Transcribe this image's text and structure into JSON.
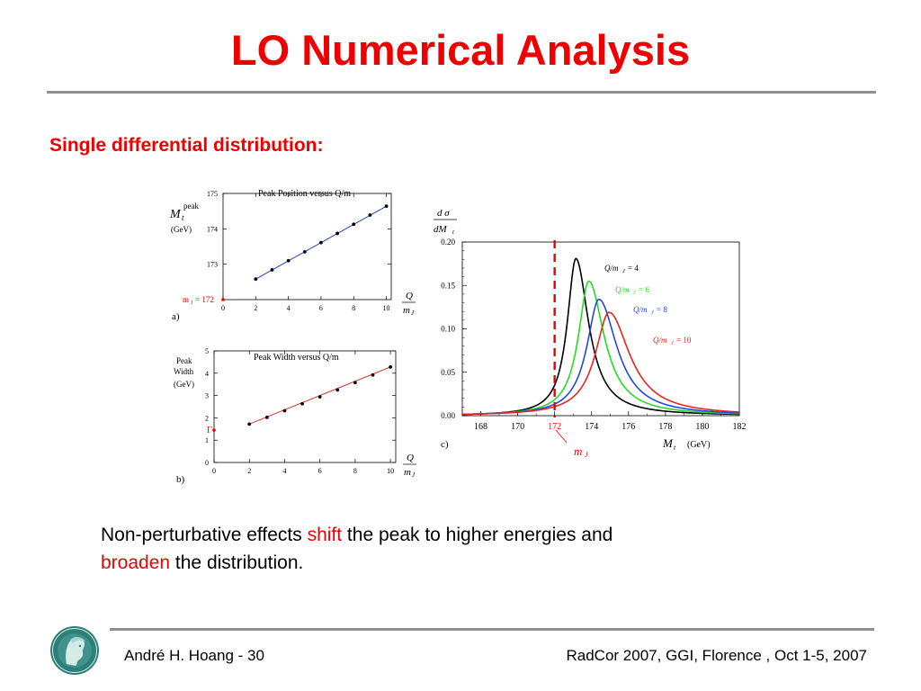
{
  "slide": {
    "title": "LO Numerical Analysis",
    "subtitle": "Single differential distribution:",
    "paragraph": {
      "part1": "Non-perturbative effects ",
      "shift": "shift",
      "part2": " the peak to higher energies and ",
      "broaden": "broaden",
      "part3": " the distribution."
    },
    "footer": {
      "left": "André H. Hoang  - 30",
      "right": "RadCor 2007, GGI, Florence , Oct 1-5, 2007"
    }
  },
  "colors": {
    "accent": "#ee0000",
    "rule": "#8f8f8f"
  },
  "chart_data": [
    {
      "type": "scatter",
      "panel": "a)",
      "title": "Peak Position versus Q/m",
      "ylabel_symbol": "M",
      "ylabel_sub": "t",
      "ylabel_sup": "peak",
      "ylabel_unit": "(GeV)",
      "xlabel_num": "Q",
      "xlabel_den": "m",
      "xlabel_den_sub": "J",
      "baseline_label": "m",
      "baseline_label_sub": "J",
      "baseline_value_text": "= 172",
      "x_ticks": [
        "0",
        "2",
        "4",
        "6",
        "8",
        "10"
      ],
      "y_ticks": [
        "173",
        "174",
        "175"
      ],
      "xlim": [
        0,
        10.3
      ],
      "ylim": [
        172,
        175
      ],
      "x": [
        2,
        3,
        4,
        5,
        6,
        7,
        8,
        9,
        10
      ],
      "y": [
        172.58,
        172.84,
        173.1,
        173.35,
        173.61,
        173.87,
        174.13,
        174.39,
        174.64
      ],
      "line_color": "#2244cc"
    },
    {
      "type": "scatter",
      "panel": "b)",
      "title": "Peak Width versus Q/m",
      "ylabel_lines": [
        "Peak",
        "Width",
        "(GeV)"
      ],
      "xlabel_num": "Q",
      "xlabel_den": "m",
      "xlabel_den_sub": "J",
      "gamma_label": "Γ",
      "gamma_value": 1.45,
      "x_ticks": [
        "0",
        "2",
        "4",
        "6",
        "8",
        "10"
      ],
      "y_ticks": [
        "0",
        "1",
        "2",
        "3",
        "4",
        "5"
      ],
      "xlim": [
        0,
        10.3
      ],
      "ylim": [
        0,
        5
      ],
      "x": [
        2,
        3,
        4,
        5,
        6,
        7,
        8,
        9,
        10
      ],
      "y": [
        1.72,
        2.02,
        2.32,
        2.63,
        2.94,
        3.25,
        3.58,
        3.92,
        4.28
      ],
      "line_color": "#dd3333"
    },
    {
      "type": "line",
      "panel": "c)",
      "ylabel_num": "d σ",
      "ylabel_den": "dM",
      "ylabel_den_sub": "t",
      "xlabel": "M",
      "xlabel_sub": "t",
      "xlabel_unit": "(GeV)",
      "marker_label": "m",
      "marker_label_sub": "J",
      "marker_x": 172,
      "x_ticks": [
        "168",
        "170",
        "172",
        "174",
        "176",
        "178",
        "180",
        "182"
      ],
      "y_ticks": [
        "0.00",
        "0.05",
        "0.10",
        "0.15",
        "0.20"
      ],
      "xlim": [
        167,
        182
      ],
      "ylim": [
        0,
        0.2
      ],
      "series": [
        {
          "name": "Q/m",
          "name_sub": "J",
          "value": "= 4",
          "color": "#000000",
          "peak": 173.15,
          "height": 0.181,
          "gamma": 1.45
        },
        {
          "name": "Q/m",
          "name_sub": "J",
          "value": "= 6",
          "color": "#22dd22",
          "peak": 173.85,
          "height": 0.155,
          "gamma": 1.75
        },
        {
          "name": "Q/m",
          "name_sub": "J",
          "value": "= 8",
          "color": "#2244ee",
          "peak": 174.4,
          "height": 0.134,
          "gamma": 2.05
        },
        {
          "name": "Q/m",
          "name_sub": "J",
          "value": "= 10",
          "color": "#ee2222",
          "peak": 174.95,
          "height": 0.119,
          "gamma": 2.35
        }
      ]
    }
  ]
}
